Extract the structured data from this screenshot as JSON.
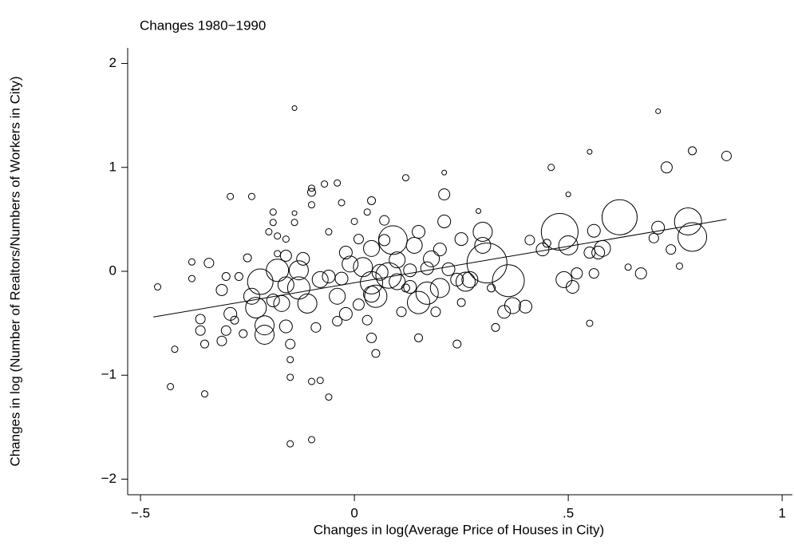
{
  "chart_data": {
    "type": "scatter",
    "title": "Changes 1980−1990",
    "x_label": "Changes in log(Average Price of Houses in City)",
    "y_label": "Changes in log (Number of Realtors/Numbers of Workers in City)",
    "xlim": [
      -0.53,
      1.024
    ],
    "ylim": [
      -2.15,
      2.15
    ],
    "xticks": [
      {
        "value": -0.5,
        "label": "−.5"
      },
      0,
      {
        "value": 0.5,
        "label": ".5"
      },
      1
    ],
    "yticks": [
      {
        "value": -2,
        "label": "−2"
      },
      {
        "value": -1,
        "label": "−1"
      },
      0,
      1,
      2
    ],
    "color": "#000000",
    "grid": false,
    "x": [
      -0.46,
      -0.43,
      -0.42,
      -0.38,
      -0.38,
      -0.36,
      -0.36,
      -0.35,
      -0.34,
      -0.35,
      -0.31,
      -0.31,
      -0.3,
      -0.29,
      -0.3,
      -0.29,
      -0.28,
      -0.26,
      -0.25,
      -0.24,
      -0.24,
      -0.27,
      -0.23,
      -0.22,
      -0.21,
      -0.21,
      -0.2,
      -0.19,
      -0.19,
      -0.19,
      -0.18,
      -0.18,
      -0.18,
      -0.17,
      -0.16,
      -0.16,
      -0.16,
      -0.16,
      -0.15,
      -0.15,
      -0.15,
      -0.15,
      -0.14,
      -0.14,
      -0.14,
      -0.13,
      -0.13,
      -0.12,
      -0.11,
      -0.1,
      -0.1,
      -0.1,
      -0.1,
      -0.1,
      -0.09,
      -0.08,
      -0.08,
      -0.07,
      -0.06,
      -0.06,
      -0.06,
      -0.04,
      -0.04,
      -0.04,
      -0.03,
      -0.03,
      -0.02,
      -0.02,
      -0.01,
      0.0,
      0.01,
      0.01,
      0.02,
      0.03,
      0.03,
      0.04,
      0.04,
      0.04,
      0.04,
      0.05,
      0.05,
      0.06,
      0.07,
      0.07,
      0.08,
      0.09,
      0.1,
      0.1,
      0.11,
      0.12,
      0.13,
      0.13,
      0.14,
      0.15,
      0.15,
      0.15,
      0.17,
      0.17,
      0.18,
      0.19,
      0.2,
      0.2,
      0.21,
      0.21,
      0.21,
      0.22,
      0.24,
      0.24,
      0.25,
      0.25,
      0.26,
      0.27,
      0.29,
      0.3,
      0.3,
      0.31,
      0.32,
      0.33,
      0.35,
      0.36,
      0.37,
      0.4,
      0.41,
      0.44,
      0.45,
      0.46,
      0.48,
      0.49,
      0.5,
      0.5,
      0.51,
      0.52,
      0.55,
      0.55,
      0.56,
      0.56,
      0.57,
      0.58,
      0.62,
      0.64,
      0.67,
      0.7,
      0.71,
      0.71,
      0.73,
      0.74,
      0.76,
      0.78,
      0.79,
      0.79,
      0.87,
      0.55,
      0.04,
      0.12
    ],
    "y": [
      -0.15,
      -1.11,
      -0.75,
      0.09,
      -0.07,
      -0.46,
      -0.57,
      -1.18,
      0.08,
      -0.7,
      -0.18,
      -0.67,
      -0.05,
      -0.41,
      -0.57,
      0.72,
      -0.47,
      -0.6,
      0.13,
      0.72,
      -0.24,
      -0.05,
      -0.35,
      -0.1,
      -0.52,
      -0.61,
      0.38,
      -0.28,
      0.57,
      0.47,
      0.34,
      0.17,
      0.01,
      -0.31,
      -0.53,
      0.15,
      0.31,
      -0.13,
      -0.7,
      -0.85,
      -1.02,
      -1.66,
      1.57,
      0.56,
      0.47,
      -0.16,
      0.01,
      0.12,
      -0.31,
      0.76,
      0.64,
      0.8,
      -1.06,
      -1.62,
      -0.54,
      -0.08,
      -1.05,
      0.84,
      -0.05,
      -1.21,
      0.38,
      0.85,
      -0.24,
      -0.48,
      0.66,
      -0.07,
      0.18,
      -0.41,
      0.07,
      0.48,
      -0.32,
      0.31,
      0.04,
      0.57,
      -0.47,
      -0.22,
      -0.64,
      0.22,
      -0.11,
      -0.24,
      -0.79,
      -0.01,
      0.3,
      0.49,
      -0.04,
      0.3,
      0.11,
      -0.1,
      -0.39,
      0.9,
      0.01,
      -0.15,
      0.25,
      0.38,
      -0.64,
      -0.3,
      -0.21,
      0.03,
      0.12,
      -0.39,
      0.21,
      -0.16,
      0.95,
      0.74,
      0.48,
      0.02,
      -0.08,
      -0.7,
      -0.3,
      0.31,
      -0.1,
      -0.08,
      0.58,
      0.25,
      0.38,
      0.08,
      -0.16,
      -0.54,
      -0.39,
      -0.09,
      -0.33,
      -0.34,
      0.3,
      0.21,
      0.27,
      1.0,
      0.38,
      -0.08,
      0.74,
      0.25,
      -0.15,
      -0.02,
      -0.5,
      0.18,
      -0.02,
      0.39,
      0.18,
      0.22,
      0.52,
      0.04,
      -0.02,
      0.32,
      1.54,
      0.42,
      1.0,
      0.21,
      0.05,
      0.48,
      1.16,
      0.33,
      1.11,
      1.15,
      0.68,
      -0.16
    ],
    "sizes": [
      16,
      16,
      16,
      16,
      16,
      36,
      36,
      16,
      36,
      25,
      49,
      36,
      25,
      64,
      36,
      16,
      25,
      25,
      25,
      16,
      100,
      25,
      169,
      256,
      144,
      144,
      16,
      64,
      16,
      16,
      16,
      16,
      196,
      100,
      64,
      49,
      16,
      100,
      36,
      16,
      16,
      16,
      9,
      9,
      16,
      196,
      144,
      64,
      144,
      25,
      16,
      16,
      16,
      16,
      36,
      100,
      16,
      16,
      64,
      16,
      16,
      16,
      100,
      36,
      16,
      64,
      64,
      64,
      100,
      16,
      49,
      36,
      144,
      16,
      36,
      100,
      36,
      100,
      196,
      196,
      25,
      100,
      49,
      36,
      256,
      324,
      100,
      100,
      36,
      16,
      64,
      64,
      100,
      64,
      25,
      196,
      196,
      64,
      100,
      36,
      64,
      144,
      9,
      49,
      64,
      64,
      64,
      25,
      25,
      64,
      144,
      100,
      9,
      100,
      144,
      625,
      25,
      25,
      64,
      400,
      100,
      64,
      36,
      64,
      25,
      16,
      529,
      100,
      9,
      144,
      64,
      49,
      16,
      49,
      36,
      64,
      64,
      100,
      484,
      16,
      49,
      36,
      9,
      64,
      49,
      36,
      16,
      289,
      25,
      324,
      36,
      9,
      25,
      25
    ],
    "fit_line": {
      "x": [
        -0.47,
        0.87
      ],
      "y": [
        -0.44,
        0.5
      ]
    }
  }
}
